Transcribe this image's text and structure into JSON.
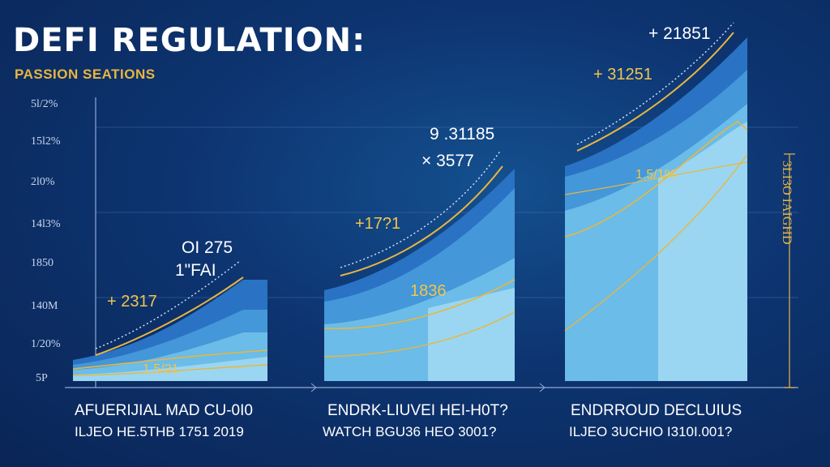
{
  "header": {
    "title": "DEFI REGULATION:",
    "subtitle": "PASSION SEATIONS"
  },
  "colors": {
    "background": "#0d3470",
    "band_dark": "#1f6bbf",
    "band_mid": "#3d8fd4",
    "band_light": "#63b6e6",
    "band_pale": "#8fd2ef",
    "line_gold": "#e8b640",
    "trend_dotted": "#dbe6ff"
  },
  "chart_data": {
    "type": "area",
    "y_tick_labels": [
      "5P",
      "1/20%",
      "140M",
      "1850",
      "14l3%",
      "2l0%",
      "15l2%",
      "5l/2%"
    ],
    "right_axis_label": "3LI3O IAIGHD",
    "groups": [
      {
        "category_line1": "AFUERIJIAL MAD CU-0I0",
        "category_line2": "ILJEO HE.5THB 1751 2019",
        "callouts_white": [
          "OI 275",
          "1\"FAI"
        ],
        "callouts_gold": [
          "+ 2317",
          "1.5/21"
        ]
      },
      {
        "category_line1": "ENDRK-LIUVEI HEI-H0T?",
        "category_line2": "WATCH BGU36 HEO 3001?",
        "callouts_white": [
          "9 .31185",
          "× 3577"
        ],
        "callouts_gold": [
          "+17?1",
          "1836"
        ]
      },
      {
        "category_line1": "ENDRROUD DECLUIUS",
        "category_line2": "ILJEO 3UCHIO I310I.001?",
        "callouts_white": [
          "+ 21851"
        ],
        "callouts_gold": [
          "+ 31251",
          "1.5/1%"
        ]
      }
    ]
  }
}
